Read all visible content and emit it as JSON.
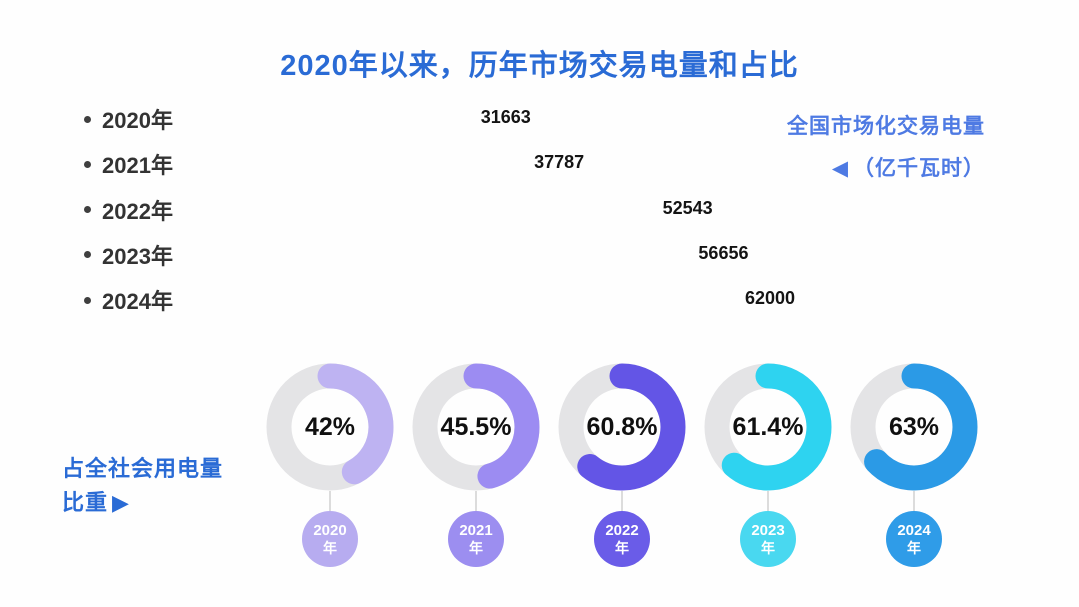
{
  "title": "2020年以来，历年市场交易电量和占比",
  "labels": {
    "right_line1": "全国市场化交易电量",
    "right_triangle": "◀",
    "right_line2": "（亿千瓦时）",
    "bottom_line1": "占全社会用电量",
    "bottom_line2": "比重",
    "bottom_triangle": "▶"
  },
  "chart_data": {
    "type": "bar",
    "title": "2020年以来，历年市场交易电量和占比",
    "categories": [
      "2020年",
      "2021年",
      "2022年",
      "2023年",
      "2024年"
    ],
    "series": [
      {
        "name": "全国市场化交易电量（亿千瓦时）",
        "type": "bar",
        "values": [
          31663,
          37787,
          52543,
          56656,
          62000
        ]
      },
      {
        "name": "占全社会用电量比重 (%)",
        "type": "donut",
        "values": [
          42,
          45.5,
          60.8,
          61.4,
          63
        ]
      }
    ],
    "value_axis_range": [
      0,
      62000
    ],
    "grid": false,
    "legend_position": "right"
  },
  "donuts": [
    {
      "year": "2020",
      "year_suffix": "年",
      "pct_label": "42%",
      "value": 42,
      "color": "#beb3f2",
      "badge_color": "#b7acf0"
    },
    {
      "year": "2021",
      "year_suffix": "年",
      "pct_label": "45.5%",
      "value": 45.5,
      "color": "#9c8cf2",
      "badge_color": "#9c8ef0"
    },
    {
      "year": "2022",
      "year_suffix": "年",
      "pct_label": "60.8%",
      "value": 60.8,
      "color": "#6355e6",
      "badge_color": "#6a5ce8"
    },
    {
      "year": "2023",
      "year_suffix": "年",
      "pct_label": "61.4%",
      "value": 61.4,
      "color": "#2ed3f0",
      "badge_color": "#49d8f0"
    },
    {
      "year": "2024",
      "year_suffix": "年",
      "pct_label": "63%",
      "value": 63,
      "color": "#2b9ae6",
      "badge_color": "#2f9ce8"
    }
  ],
  "style": {
    "title_color": "#2a6bd5",
    "legend_color": "#4e7ae3",
    "track_color": "#e4e4e6",
    "value_text_color": "#141414"
  }
}
